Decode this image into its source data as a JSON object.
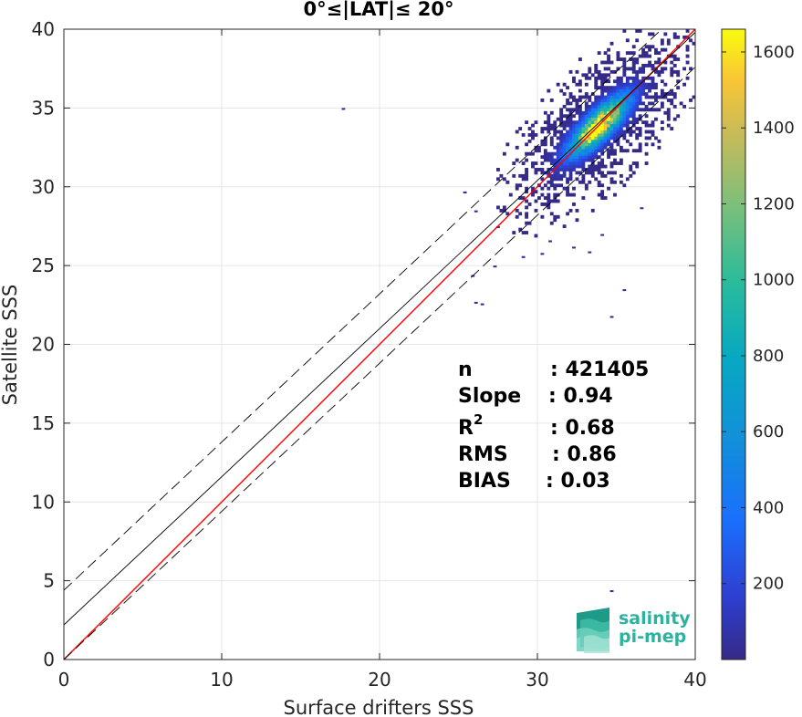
{
  "chart_data": {
    "type": "heatmap",
    "title": "0°≤|LAT|≤ 20°",
    "xlabel": "Surface drifters SSS",
    "ylabel": "Satellite SSS",
    "xlim": [
      0,
      40
    ],
    "ylim": [
      0,
      40
    ],
    "x_ticks": [
      0,
      10,
      20,
      30,
      40
    ],
    "y_ticks": [
      0,
      5,
      10,
      15,
      20,
      25,
      30,
      35,
      40
    ],
    "x_tick_labels": [
      "0",
      "10",
      "20",
      "30",
      "40"
    ],
    "y_tick_labels": [
      "0",
      "5",
      "10",
      "15",
      "20",
      "25",
      "30",
      "35",
      "40"
    ],
    "grid": true,
    "colorbar": {
      "min": 0,
      "max": 1660,
      "ticks": [
        200,
        400,
        600,
        800,
        1000,
        1200,
        1400,
        1600
      ],
      "tick_labels": [
        "200",
        "400",
        "600",
        "800",
        "1000",
        "1200",
        "1400",
        "1600"
      ],
      "colormap": "parula"
    },
    "lines": [
      {
        "role": "1:1 line",
        "color": "#ff0000",
        "intercept": 0,
        "slope": 1.0
      },
      {
        "role": "regression fit",
        "color": "#000000",
        "intercept": 2.2,
        "slope": 0.94
      },
      {
        "role": "fit + 2 std",
        "color": "#000000",
        "style": "dashed",
        "intercept": 4.4,
        "slope": 0.94
      },
      {
        "role": "fit - 2 std",
        "color": "#000000",
        "style": "dashed",
        "intercept": 0.0,
        "slope": 0.94
      }
    ],
    "density": {
      "center": [
        33.8,
        33.8
      ],
      "spread_along": 2.6,
      "spread_across": 0.85,
      "peak_count": 1660,
      "outliers": [
        [
          17.6,
          34.8
        ],
        [
          34.6,
          4.2
        ],
        [
          34.6,
          21.6
        ],
        [
          35.4,
          23.3
        ],
        [
          26.0,
          22.5
        ],
        [
          26.4,
          22.4
        ],
        [
          28.7,
          29.9
        ],
        [
          29.0,
          25.4
        ],
        [
          30.2,
          25.6
        ],
        [
          25.8,
          24.2
        ],
        [
          27.4,
          27.3
        ],
        [
          26.0,
          28.3
        ],
        [
          25.3,
          29.5
        ],
        [
          28.0,
          30.1
        ],
        [
          32.2,
          26.0
        ],
        [
          33.2,
          25.7
        ],
        [
          34.0,
          26.8
        ],
        [
          30.7,
          26.4
        ],
        [
          36.5,
          28.5
        ],
        [
          27.2,
          24.8
        ]
      ]
    },
    "stats": {
      "labels": [
        "n",
        "Slope",
        "R",
        "RMS",
        "BIAS"
      ],
      "values": [
        ": 421405",
        ": 0.94",
        ": 0.68",
        ": 0.86",
        ": 0.03"
      ],
      "r_superscript": "2"
    }
  },
  "logo": {
    "line1": "salinity",
    "line2": "pi-mep"
  }
}
